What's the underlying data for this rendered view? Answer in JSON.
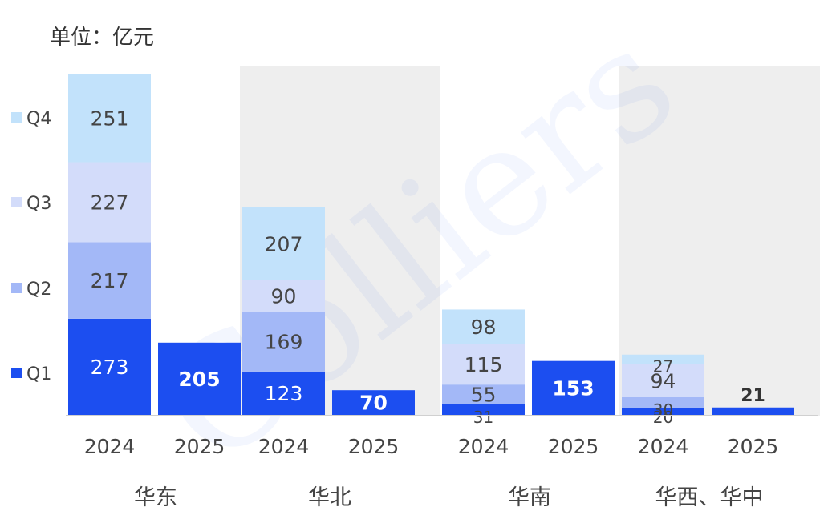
{
  "chart_data": {
    "type": "bar",
    "stacked": true,
    "unit_label": "单位：亿元",
    "groups": [
      {
        "name": "华东",
        "bars": [
          {
            "year": "2024",
            "values": [
              273,
              217,
              227,
              251
            ]
          },
          {
            "year": "2025",
            "values": [
              205
            ]
          }
        ]
      },
      {
        "name": "华北",
        "bars": [
          {
            "year": "2024",
            "values": [
              123,
              169,
              90,
              207
            ]
          },
          {
            "year": "2025",
            "values": [
              70
            ]
          }
        ]
      },
      {
        "name": "华南",
        "bars": [
          {
            "year": "2024",
            "values": [
              31,
              55,
              115,
              98
            ]
          },
          {
            "year": "2025",
            "values": [
              153
            ]
          }
        ]
      },
      {
        "name": "华西、华中",
        "bars": [
          {
            "year": "2024",
            "values": [
              20,
              30,
              94,
              27
            ]
          },
          {
            "year": "2025",
            "values": [
              21
            ]
          }
        ]
      }
    ],
    "series": [
      {
        "name": "Q1",
        "color": "#1c4ef0"
      },
      {
        "name": "Q2",
        "color": "#a3b8f7"
      },
      {
        "name": "Q3",
        "color": "#d3dcfa"
      },
      {
        "name": "Q4",
        "color": "#c2e2fb"
      }
    ],
    "legend_order": [
      "Q4",
      "Q3",
      "Q2",
      "Q1"
    ],
    "legend_position": "left",
    "shaded_groups": [
      1,
      3
    ],
    "shade_color": "#eeeeee",
    "watermark": "Colliers"
  }
}
